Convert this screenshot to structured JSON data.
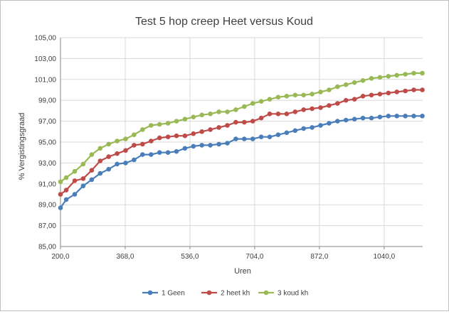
{
  "chart_data": {
    "type": "line",
    "title": "Test 5 hop creep Heet versus Koud",
    "xlabel": "Uren",
    "ylabel": "% Vergistingsgraad",
    "xlim": [
      200,
      1140
    ],
    "ylim": [
      85,
      105
    ],
    "x_ticks": [
      "200,0",
      "368,0",
      "536,0",
      "704,0",
      "872,0",
      "1040,0"
    ],
    "y_ticks": [
      "85,00",
      "87,00",
      "89,00",
      "91,00",
      "93,00",
      "95,00",
      "97,00",
      "99,00",
      "101,00",
      "103,00",
      "105,00"
    ],
    "grid": true,
    "legend_position": "bottom",
    "series": [
      {
        "name": "1 Geen",
        "color": "#4a7ebb",
        "x": [
          200,
          215,
          237,
          259,
          281,
          303,
          325,
          347,
          369,
          391,
          413,
          435,
          457,
          479,
          501,
          523,
          545,
          567,
          589,
          611,
          633,
          655,
          677,
          699,
          721,
          743,
          765,
          787,
          809,
          831,
          853,
          875,
          897,
          919,
          941,
          963,
          985,
          1007,
          1029,
          1051,
          1073,
          1095,
          1117,
          1139
        ],
        "y": [
          88.7,
          89.5,
          90.0,
          90.8,
          91.4,
          92.0,
          92.4,
          92.9,
          93.0,
          93.3,
          93.8,
          93.8,
          94.0,
          94.0,
          94.1,
          94.4,
          94.6,
          94.7,
          94.7,
          94.8,
          94.9,
          95.3,
          95.3,
          95.3,
          95.5,
          95.5,
          95.7,
          95.9,
          96.1,
          96.3,
          96.4,
          96.6,
          96.8,
          97.0,
          97.1,
          97.2,
          97.3,
          97.3,
          97.4,
          97.5,
          97.5,
          97.5,
          97.5,
          97.5
        ]
      },
      {
        "name": "2 heet kh",
        "color": "#be4b48",
        "x": [
          200,
          215,
          237,
          259,
          281,
          303,
          325,
          347,
          369,
          391,
          413,
          435,
          457,
          479,
          501,
          523,
          545,
          567,
          589,
          611,
          633,
          655,
          677,
          699,
          721,
          743,
          765,
          787,
          809,
          831,
          853,
          875,
          897,
          919,
          941,
          963,
          985,
          1007,
          1029,
          1051,
          1073,
          1095,
          1117,
          1139
        ],
        "y": [
          90.0,
          90.4,
          91.3,
          91.5,
          92.3,
          93.2,
          93.6,
          93.9,
          94.2,
          94.7,
          94.8,
          95.1,
          95.4,
          95.5,
          95.6,
          95.6,
          95.8,
          96.0,
          96.2,
          96.4,
          96.6,
          96.9,
          96.9,
          97.0,
          97.3,
          97.7,
          97.7,
          97.7,
          97.9,
          98.1,
          98.2,
          98.3,
          98.5,
          98.7,
          99.0,
          99.1,
          99.4,
          99.5,
          99.6,
          99.7,
          99.8,
          99.9,
          100.0,
          100.0
        ]
      },
      {
        "name": "3 koud kh",
        "color": "#98b954",
        "x": [
          200,
          215,
          237,
          259,
          281,
          303,
          325,
          347,
          369,
          391,
          413,
          435,
          457,
          479,
          501,
          523,
          545,
          567,
          589,
          611,
          633,
          655,
          677,
          699,
          721,
          743,
          765,
          787,
          809,
          831,
          853,
          875,
          897,
          919,
          941,
          963,
          985,
          1007,
          1029,
          1051,
          1073,
          1095,
          1117,
          1139
        ],
        "y": [
          91.2,
          91.6,
          92.2,
          92.9,
          93.8,
          94.4,
          94.8,
          95.1,
          95.3,
          95.7,
          96.2,
          96.6,
          96.7,
          96.8,
          97.0,
          97.2,
          97.4,
          97.6,
          97.7,
          97.9,
          97.9,
          98.1,
          98.4,
          98.7,
          98.9,
          99.1,
          99.3,
          99.4,
          99.5,
          99.5,
          99.6,
          99.8,
          100.0,
          100.3,
          100.5,
          100.7,
          100.9,
          101.1,
          101.2,
          101.3,
          101.4,
          101.5,
          101.6,
          101.6
        ]
      }
    ]
  }
}
